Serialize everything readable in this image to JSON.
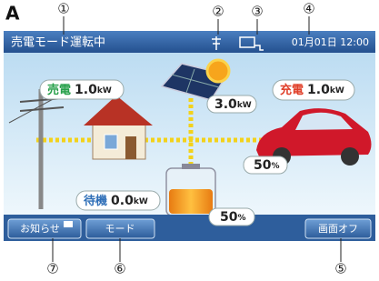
{
  "figure_label": "A",
  "callouts": [
    "①",
    "②",
    "③",
    "④",
    "⑤",
    "⑥",
    "⑦"
  ],
  "status_bar": {
    "mode": "売電モード運転中",
    "datetime": "01月01日 12:00"
  },
  "flows": {
    "sell": {
      "label": "売電",
      "value": "1.0",
      "unit": "kW"
    },
    "solar": {
      "value": "3.0",
      "unit": "kW"
    },
    "charge": {
      "label": "充電",
      "value": "1.0",
      "unit": "kW"
    },
    "ev": {
      "value": "50",
      "unit": "%"
    },
    "standby": {
      "label": "待機",
      "value": "0.0",
      "unit": "kW"
    },
    "battery": {
      "value": "50",
      "unit": "%"
    }
  },
  "buttons": [
    "お知らせ",
    "モード",
    "画面オフ"
  ]
}
